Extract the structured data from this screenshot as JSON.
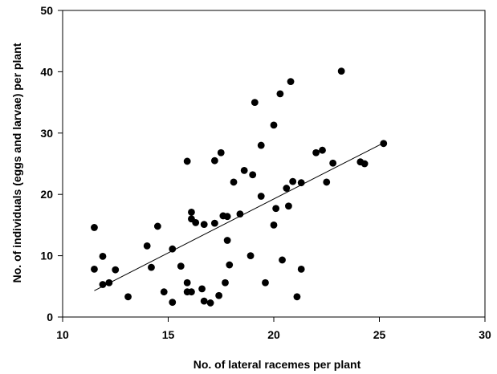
{
  "chart_data": {
    "type": "scatter",
    "title": "",
    "xlabel": "No. of lateral racemes per plant",
    "ylabel": "No. of individuals (eggs and larvae) per plant",
    "xlim": [
      10,
      30
    ],
    "ylim": [
      0,
      50
    ],
    "xticks": [
      "10",
      "15",
      "20",
      "25",
      "30"
    ],
    "yticks": [
      "0",
      "10",
      "20",
      "30",
      "40",
      "50"
    ],
    "grid": false,
    "legend": "none",
    "colors": {
      "points": "#000000",
      "axes": "#000000",
      "trendline": "#000000"
    },
    "trendline": {
      "x": [
        11.5,
        25.2
      ],
      "y": [
        4.3,
        28.4
      ]
    },
    "points": [
      {
        "x": 11.5,
        "y": 14.6
      },
      {
        "x": 11.5,
        "y": 7.8
      },
      {
        "x": 11.9,
        "y": 9.9
      },
      {
        "x": 11.9,
        "y": 5.3
      },
      {
        "x": 12.2,
        "y": 5.6
      },
      {
        "x": 12.5,
        "y": 7.7
      },
      {
        "x": 13.1,
        "y": 3.3
      },
      {
        "x": 14.0,
        "y": 11.6
      },
      {
        "x": 14.2,
        "y": 8.1
      },
      {
        "x": 14.5,
        "y": 14.8
      },
      {
        "x": 14.8,
        "y": 4.1
      },
      {
        "x": 15.2,
        "y": 11.1
      },
      {
        "x": 15.2,
        "y": 2.4
      },
      {
        "x": 15.6,
        "y": 8.3
      },
      {
        "x": 15.9,
        "y": 25.4
      },
      {
        "x": 15.9,
        "y": 5.6
      },
      {
        "x": 15.9,
        "y": 4.1
      },
      {
        "x": 16.1,
        "y": 17.1
      },
      {
        "x": 16.1,
        "y": 16.0
      },
      {
        "x": 16.1,
        "y": 4.1
      },
      {
        "x": 16.3,
        "y": 15.4
      },
      {
        "x": 16.6,
        "y": 4.6
      },
      {
        "x": 16.7,
        "y": 15.1
      },
      {
        "x": 16.7,
        "y": 2.6
      },
      {
        "x": 17.0,
        "y": 2.3
      },
      {
        "x": 17.2,
        "y": 25.5
      },
      {
        "x": 17.2,
        "y": 15.3
      },
      {
        "x": 17.4,
        "y": 3.5
      },
      {
        "x": 17.5,
        "y": 26.8
      },
      {
        "x": 17.6,
        "y": 16.5
      },
      {
        "x": 17.7,
        "y": 5.6
      },
      {
        "x": 17.8,
        "y": 16.4
      },
      {
        "x": 17.8,
        "y": 12.5
      },
      {
        "x": 17.9,
        "y": 8.5
      },
      {
        "x": 18.1,
        "y": 22.0
      },
      {
        "x": 18.4,
        "y": 16.8
      },
      {
        "x": 18.6,
        "y": 23.9
      },
      {
        "x": 18.9,
        "y": 10.0
      },
      {
        "x": 19.0,
        "y": 23.2
      },
      {
        "x": 19.1,
        "y": 35.0
      },
      {
        "x": 19.4,
        "y": 28.0
      },
      {
        "x": 19.4,
        "y": 19.7
      },
      {
        "x": 19.6,
        "y": 5.6
      },
      {
        "x": 20.0,
        "y": 31.3
      },
      {
        "x": 20.0,
        "y": 15.0
      },
      {
        "x": 20.1,
        "y": 17.7
      },
      {
        "x": 20.3,
        "y": 36.4
      },
      {
        "x": 20.4,
        "y": 9.3
      },
      {
        "x": 20.6,
        "y": 21.0
      },
      {
        "x": 20.7,
        "y": 18.1
      },
      {
        "x": 20.8,
        "y": 38.4
      },
      {
        "x": 20.9,
        "y": 22.1
      },
      {
        "x": 21.1,
        "y": 3.3
      },
      {
        "x": 21.3,
        "y": 21.9
      },
      {
        "x": 21.3,
        "y": 7.8
      },
      {
        "x": 22.0,
        "y": 26.8
      },
      {
        "x": 22.3,
        "y": 27.2
      },
      {
        "x": 22.5,
        "y": 22.0
      },
      {
        "x": 22.8,
        "y": 25.1
      },
      {
        "x": 23.2,
        "y": 40.1
      },
      {
        "x": 24.1,
        "y": 25.3
      },
      {
        "x": 24.3,
        "y": 25.0
      },
      {
        "x": 25.2,
        "y": 28.3
      }
    ]
  }
}
